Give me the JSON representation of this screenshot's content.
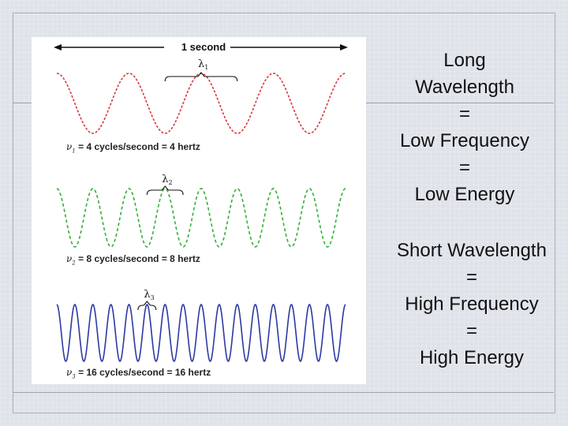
{
  "figure": {
    "duration_label": "1 second",
    "waves": [
      {
        "name": "wave-4hz",
        "cycles": 4,
        "color": "#d9393f",
        "lambda_label": "λ",
        "lambda_sub": "1",
        "nu_sub": "1",
        "caption": "= 4 cycles/second = 4 hertz"
      },
      {
        "name": "wave-8hz",
        "cycles": 8,
        "color": "#33b03a",
        "lambda_label": "λ",
        "lambda_sub": "2",
        "nu_sub": "2",
        "caption": "= 8 cycles/second = 8 hertz"
      },
      {
        "name": "wave-16hz",
        "cycles": 16,
        "color": "#2b3aa3",
        "lambda_label": "λ",
        "lambda_sub": "3",
        "nu_sub": "3",
        "caption": "= 16 cycles/second = 16 hertz"
      }
    ],
    "nu_symbol": "ν"
  },
  "long_text": [
    "Long",
    "Wavelength",
    "=",
    "Low Frequency",
    "=",
    "Low Energy"
  ],
  "short_text": [
    "Short Wavelength",
    "=",
    "High Frequency",
    "=",
    "High Energy"
  ]
}
